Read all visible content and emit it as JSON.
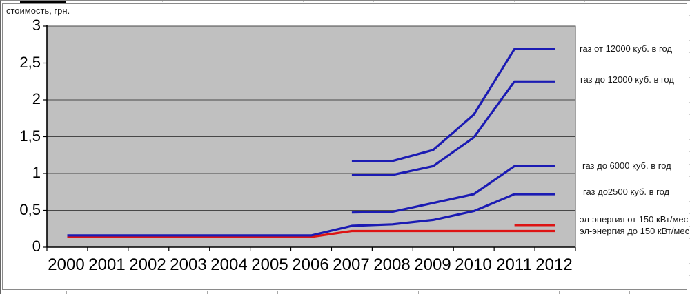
{
  "y_axis": {
    "unit_label": "стоимость, грн.",
    "ticks": [
      "3",
      "2,5",
      "2",
      "1,5",
      "1",
      "0,5",
      "0"
    ]
  },
  "x_axis": {
    "ticks": [
      "2000",
      "2001",
      "2002",
      "2003",
      "2004",
      "2005",
      "2006",
      "2007",
      "2008",
      "2009",
      "2010",
      "2011",
      "2012"
    ]
  },
  "chart_data": {
    "type": "line",
    "title": "",
    "ylabel": "стоимость, грн.",
    "xlabel": "",
    "x": [
      2000,
      2001,
      2002,
      2003,
      2004,
      2005,
      2006,
      2007,
      2008,
      2009,
      2010,
      2011,
      2012
    ],
    "ylim": [
      0,
      3
    ],
    "ytick_step": 0.5,
    "grid": "horizontal",
    "background": "#c0c0c0",
    "legend_position": "right-annotations",
    "series": [
      {
        "name": "газ от 12000 куб. в год",
        "color": "#1b1bb3",
        "values": [
          null,
          null,
          null,
          null,
          null,
          null,
          null,
          1.17,
          1.17,
          1.32,
          1.8,
          2.69,
          2.69
        ]
      },
      {
        "name": "газ до 12000 куб. в год",
        "color": "#1b1bb3",
        "values": [
          null,
          null,
          null,
          null,
          null,
          null,
          null,
          0.98,
          0.98,
          1.1,
          1.49,
          2.25,
          2.25
        ]
      },
      {
        "name": "газ до 6000 куб. в год",
        "color": "#1b1bb3",
        "values": [
          null,
          null,
          null,
          null,
          null,
          null,
          null,
          0.47,
          0.48,
          0.6,
          0.72,
          1.1,
          1.1
        ]
      },
      {
        "name": "газ до2500 куб. в год",
        "color": "#1b1bb3",
        "values": [
          0.16,
          0.16,
          0.16,
          0.16,
          0.16,
          0.16,
          0.16,
          0.29,
          0.31,
          0.37,
          0.49,
          0.72,
          0.72
        ]
      },
      {
        "name": "эл-энергия от 150 кВт/мес",
        "color": "#dd1414",
        "values": [
          null,
          null,
          null,
          null,
          null,
          null,
          null,
          null,
          null,
          null,
          null,
          0.3,
          0.3
        ]
      },
      {
        "name": "эл-энергия до 150 кВт/мес",
        "color": "#dd1414",
        "values": [
          0.14,
          0.14,
          0.14,
          0.14,
          0.14,
          0.14,
          0.14,
          0.22,
          0.22,
          0.22,
          0.22,
          0.22,
          0.22
        ]
      }
    ]
  }
}
